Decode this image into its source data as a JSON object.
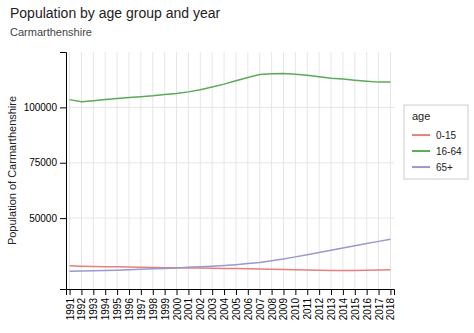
{
  "chart_data": {
    "type": "line",
    "title": "Population by age group and year",
    "subtitle": "Carmarthenshire",
    "y_label": "Population of Carmarthenshire",
    "legend_title": "age",
    "x": [
      1991,
      1992,
      1993,
      1994,
      1995,
      1996,
      1997,
      1998,
      1999,
      2000,
      2001,
      2002,
      2003,
      2004,
      2005,
      2006,
      2007,
      2008,
      2009,
      2010,
      2011,
      2012,
      2013,
      2014,
      2015,
      2016,
      2017,
      2018
    ],
    "series": [
      {
        "name": "0-15",
        "color": "#e87e7e",
        "values": [
          28500,
          28300,
          28200,
          28100,
          28000,
          27900,
          27800,
          27700,
          27600,
          27600,
          27500,
          27500,
          27400,
          27300,
          27200,
          27100,
          27000,
          26900,
          26800,
          26700,
          26600,
          26500,
          26400,
          26400,
          26400,
          26500,
          26600,
          26700
        ]
      },
      {
        "name": "16-64",
        "color": "#5aaa5a",
        "values": [
          103500,
          102500,
          103000,
          103500,
          104000,
          104500,
          104800,
          105200,
          105800,
          106300,
          107000,
          108000,
          109200,
          110500,
          112000,
          113500,
          114800,
          115200,
          115300,
          115000,
          114500,
          113800,
          113200,
          112800,
          112300,
          111800,
          111400,
          111500
        ]
      },
      {
        "name": "65+",
        "color": "#9999cc",
        "values": [
          26000,
          26100,
          26200,
          26300,
          26500,
          26700,
          26900,
          27100,
          27300,
          27500,
          27800,
          28000,
          28300,
          28600,
          29000,
          29500,
          30000,
          30800,
          31500,
          32500,
          33500,
          34500,
          35500,
          36500,
          37500,
          38500,
          39500,
          40500
        ]
      }
    ],
    "xlim": [
      1990.7,
      2018.3
    ],
    "xticks": [
      1991,
      1992,
      1993,
      1994,
      1995,
      1996,
      1997,
      1998,
      1999,
      2000,
      2001,
      2002,
      2003,
      2004,
      2005,
      2006,
      2007,
      2008,
      2009,
      2010,
      2011,
      2012,
      2013,
      2014,
      2015,
      2016,
      2017,
      2018
    ],
    "ylim": [
      18000,
      125000
    ],
    "yticks": [
      50000,
      75000,
      100000
    ],
    "grid": true,
    "legend": "right"
  }
}
